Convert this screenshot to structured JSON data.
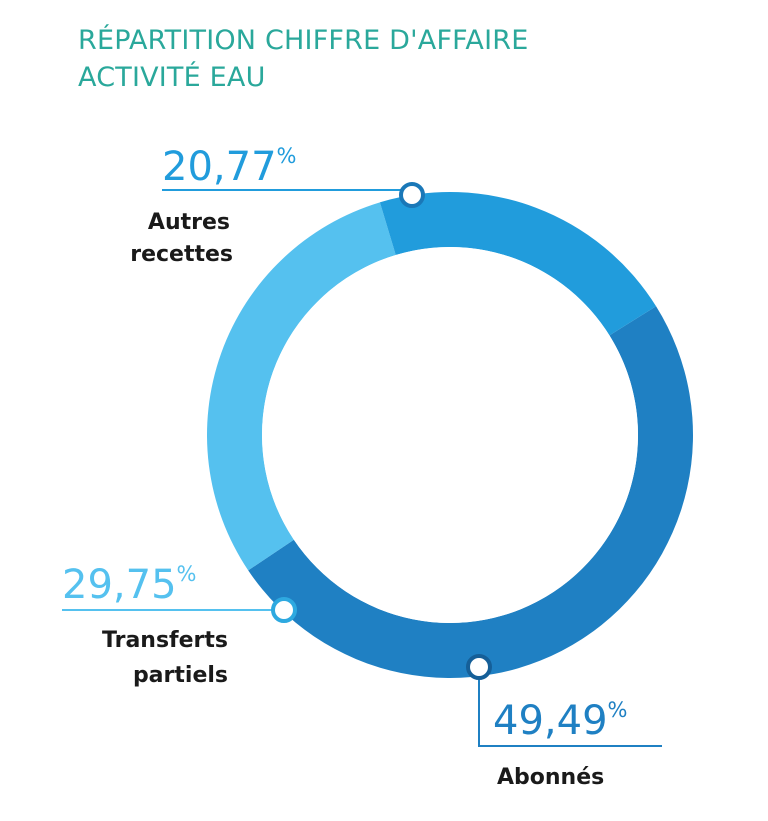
{
  "title_line1": "RÉPARTITION CHIFFRE D'AFFAIRE",
  "title_line2": "ACTIVITÉ EAU",
  "colors": {
    "title": "#2aa89b",
    "background": "#ffffff"
  },
  "chart_data": {
    "type": "pie",
    "subtype": "donut",
    "title": "RÉPARTITION CHIFFRE D'AFFAIRE ACTIVITÉ EAU",
    "slices": [
      {
        "id": "abonnes",
        "label": "Abonnés",
        "value": 49.49,
        "value_text": "49,49",
        "unit": "%",
        "color": "#1f80c3"
      },
      {
        "id": "transferts",
        "label_lines": [
          "Transferts",
          "partiels"
        ],
        "value": 29.75,
        "value_text": "29,75",
        "unit": "%",
        "color": "#55c1ef"
      },
      {
        "id": "autres",
        "label_lines": [
          "Autres",
          "recettes"
        ],
        "value": 20.77,
        "value_text": "20,77",
        "unit": "%",
        "color": "#219cdc"
      }
    ]
  }
}
